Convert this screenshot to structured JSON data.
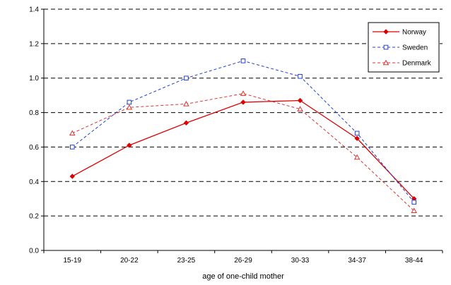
{
  "chart_data": {
    "type": "line",
    "title": "",
    "xlabel": "age of one-child mother",
    "ylabel": "",
    "categories": [
      "15-19",
      "20-22",
      "23-25",
      "26-29",
      "30-33",
      "34-37",
      "38-44"
    ],
    "ylim": [
      0,
      1.4
    ],
    "yticks": [
      "0.0",
      "0.2",
      "0.4",
      "0.6",
      "0.8",
      "1.0",
      "1.2",
      "1.4"
    ],
    "grid": "horizontal dashed",
    "legend_position": "top-right",
    "series": [
      {
        "name": "Norway",
        "color": "#dd0000",
        "dash": "solid",
        "marker": "diamond",
        "values": [
          0.43,
          0.61,
          0.74,
          0.86,
          0.87,
          0.65,
          0.3
        ]
      },
      {
        "name": "Sweden",
        "color": "#1f3fd6",
        "dash": "dashed",
        "marker": "square",
        "values": [
          0.6,
          0.86,
          1.0,
          1.1,
          1.01,
          0.68,
          0.28
        ]
      },
      {
        "name": "Denmark",
        "color": "#e03030",
        "dash": "dashed",
        "marker": "triangle",
        "values": [
          0.68,
          0.83,
          0.85,
          0.91,
          0.82,
          0.54,
          0.23
        ]
      }
    ]
  }
}
